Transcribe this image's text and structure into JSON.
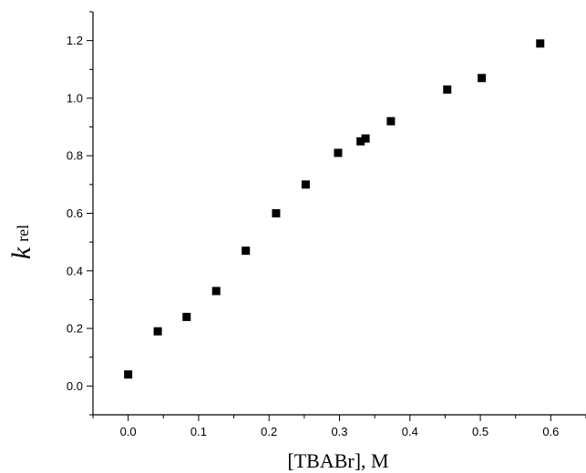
{
  "chart_data": {
    "type": "scatter",
    "title": "",
    "xlabel": "[TBABr], M",
    "ylabel_main": "k",
    "ylabel_sub": "rel",
    "xlim": [
      -0.05,
      0.65
    ],
    "ylim": [
      -0.1,
      1.3
    ],
    "x_ticks": [
      0.0,
      0.1,
      0.2,
      0.3,
      0.4,
      0.5,
      0.6
    ],
    "x_tick_labels": [
      "0.0",
      "0.1",
      "0.2",
      "0.3",
      "0.4",
      "0.5",
      "0.6"
    ],
    "y_ticks": [
      0.0,
      0.2,
      0.4,
      0.6,
      0.8,
      1.0,
      1.2
    ],
    "y_tick_labels": [
      "0.0",
      "0.2",
      "0.4",
      "0.6",
      "0.8",
      "1.0",
      "1.2"
    ],
    "grid": false,
    "marker": "square",
    "marker_color": "#000000",
    "x": [
      0.0,
      0.042,
      0.083,
      0.125,
      0.167,
      0.21,
      0.252,
      0.298,
      0.33,
      0.337,
      0.373,
      0.453,
      0.502,
      0.585
    ],
    "y": [
      0.04,
      0.19,
      0.24,
      0.33,
      0.47,
      0.6,
      0.7,
      0.81,
      0.85,
      0.86,
      0.92,
      1.03,
      1.07,
      1.19
    ]
  }
}
